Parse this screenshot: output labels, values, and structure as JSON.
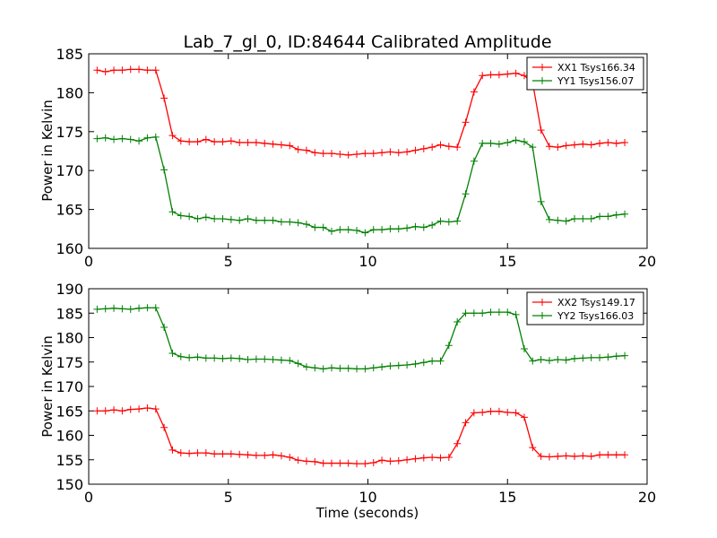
{
  "chart_data": [
    {
      "type": "line",
      "title": "Lab_7_gl_0, ID:84644 Calibrated Amplitude",
      "xlabel": "",
      "ylabel": "Power in Kelvin",
      "xlim": [
        0,
        20
      ],
      "ylim": [
        160,
        185
      ],
      "xticks": [
        "0",
        "5",
        "10",
        "15",
        "20"
      ],
      "yticks": [
        "160",
        "165",
        "170",
        "175",
        "180",
        "185"
      ],
      "legend_position": "top-right",
      "grid": false,
      "x": [
        0.3,
        0.6,
        0.9,
        1.2,
        1.5,
        1.8,
        2.1,
        2.4,
        2.7,
        3.0,
        3.3,
        3.6,
        3.9,
        4.2,
        4.5,
        4.8,
        5.1,
        5.4,
        5.7,
        6.0,
        6.3,
        6.6,
        6.9,
        7.2,
        7.5,
        7.8,
        8.1,
        8.4,
        8.7,
        9.0,
        9.3,
        9.6,
        9.9,
        10.2,
        10.5,
        10.8,
        11.1,
        11.4,
        11.7,
        12.0,
        12.3,
        12.6,
        12.9,
        13.2,
        13.5,
        13.8,
        14.1,
        14.4,
        14.7,
        15.0,
        15.3,
        15.6,
        15.9,
        16.2,
        16.5,
        16.8,
        17.1,
        17.4,
        17.7,
        18.0,
        18.3,
        18.6,
        18.9,
        19.2
      ],
      "series": [
        {
          "name": "XX1 Tsys166.34",
          "color": "#ff0000",
          "values": [
            182.9,
            182.7,
            182.9,
            182.9,
            183.0,
            183.0,
            182.9,
            182.9,
            179.3,
            174.5,
            173.8,
            173.7,
            173.7,
            174.0,
            173.7,
            173.7,
            173.8,
            173.6,
            173.6,
            173.6,
            173.5,
            173.4,
            173.3,
            173.2,
            172.7,
            172.6,
            172.3,
            172.2,
            172.2,
            172.1,
            172.0,
            172.1,
            172.2,
            172.2,
            172.3,
            172.4,
            172.3,
            172.4,
            172.6,
            172.8,
            173.0,
            173.3,
            173.1,
            173.0,
            176.2,
            180.1,
            182.2,
            182.3,
            182.3,
            182.4,
            182.5,
            182.2,
            181.3,
            175.2,
            173.1,
            173.0,
            173.2,
            173.3,
            173.4,
            173.3,
            173.5,
            173.6,
            173.5,
            173.6
          ]
        },
        {
          "name": "YY1 Tsys156.07",
          "color": "#008000",
          "values": [
            174.1,
            174.2,
            174.0,
            174.1,
            174.0,
            173.8,
            174.2,
            174.3,
            170.1,
            164.7,
            164.2,
            164.1,
            163.8,
            164.0,
            163.8,
            163.8,
            163.7,
            163.6,
            163.8,
            163.6,
            163.6,
            163.6,
            163.4,
            163.4,
            163.3,
            163.1,
            162.7,
            162.7,
            162.2,
            162.4,
            162.4,
            162.3,
            162.0,
            162.4,
            162.4,
            162.5,
            162.5,
            162.6,
            162.8,
            162.7,
            163.0,
            163.5,
            163.4,
            163.5,
            167.0,
            171.2,
            173.5,
            173.5,
            173.4,
            173.6,
            173.9,
            173.7,
            173.0,
            166.0,
            163.7,
            163.6,
            163.5,
            163.8,
            163.8,
            163.8,
            164.1,
            164.1,
            164.3,
            164.4
          ]
        }
      ]
    },
    {
      "type": "line",
      "title": "",
      "xlabel": "Time (seconds)",
      "ylabel": "Power in Kelvin",
      "xlim": [
        0,
        20
      ],
      "ylim": [
        150,
        190
      ],
      "xticks": [
        "0",
        "5",
        "10",
        "15",
        "20"
      ],
      "yticks": [
        "150",
        "155",
        "160",
        "165",
        "170",
        "175",
        "180",
        "185",
        "190"
      ],
      "legend_position": "top-right",
      "grid": false,
      "x": [
        0.3,
        0.6,
        0.9,
        1.2,
        1.5,
        1.8,
        2.1,
        2.4,
        2.7,
        3.0,
        3.3,
        3.6,
        3.9,
        4.2,
        4.5,
        4.8,
        5.1,
        5.4,
        5.7,
        6.0,
        6.3,
        6.6,
        6.9,
        7.2,
        7.5,
        7.8,
        8.1,
        8.4,
        8.7,
        9.0,
        9.3,
        9.6,
        9.9,
        10.2,
        10.5,
        10.8,
        11.1,
        11.4,
        11.7,
        12.0,
        12.3,
        12.6,
        12.9,
        13.2,
        13.5,
        13.8,
        14.1,
        14.4,
        14.7,
        15.0,
        15.3,
        15.6,
        15.9,
        16.2,
        16.5,
        16.8,
        17.1,
        17.4,
        17.7,
        18.0,
        18.3,
        18.6,
        18.9,
        19.2
      ],
      "series": [
        {
          "name": "XX2 Tsys149.17",
          "color": "#ff0000",
          "values": [
            165.0,
            165.0,
            165.2,
            165.0,
            165.3,
            165.4,
            165.6,
            165.4,
            161.6,
            157.0,
            156.4,
            156.3,
            156.4,
            156.4,
            156.2,
            156.2,
            156.2,
            156.1,
            156.0,
            155.9,
            155.9,
            156.0,
            155.8,
            155.5,
            154.9,
            154.7,
            154.6,
            154.3,
            154.3,
            154.3,
            154.3,
            154.2,
            154.2,
            154.4,
            154.9,
            154.7,
            154.8,
            155.0,
            155.2,
            155.4,
            155.5,
            155.4,
            155.5,
            158.3,
            162.6,
            164.6,
            164.7,
            164.9,
            164.9,
            164.7,
            164.6,
            163.7,
            157.5,
            155.7,
            155.6,
            155.7,
            155.8,
            155.7,
            155.8,
            155.7,
            156.0,
            156.0,
            156.0,
            156.0
          ]
        },
        {
          "name": "YY2 Tsys166.03",
          "color": "#008000",
          "values": [
            185.8,
            185.9,
            186.0,
            185.9,
            185.8,
            186.0,
            186.1,
            186.1,
            182.1,
            176.8,
            176.1,
            175.9,
            176.0,
            175.8,
            175.8,
            175.7,
            175.8,
            175.7,
            175.5,
            175.6,
            175.6,
            175.5,
            175.4,
            175.3,
            174.7,
            174.0,
            173.8,
            173.6,
            173.8,
            173.7,
            173.7,
            173.6,
            173.6,
            173.8,
            174.0,
            174.2,
            174.3,
            174.4,
            174.6,
            174.9,
            175.2,
            175.2,
            178.4,
            183.2,
            185.0,
            185.0,
            185.0,
            185.2,
            185.2,
            185.2,
            184.7,
            177.7,
            175.2,
            175.5,
            175.3,
            175.5,
            175.4,
            175.7,
            175.8,
            175.9,
            175.9,
            176.0,
            176.2,
            176.3
          ]
        }
      ]
    }
  ]
}
